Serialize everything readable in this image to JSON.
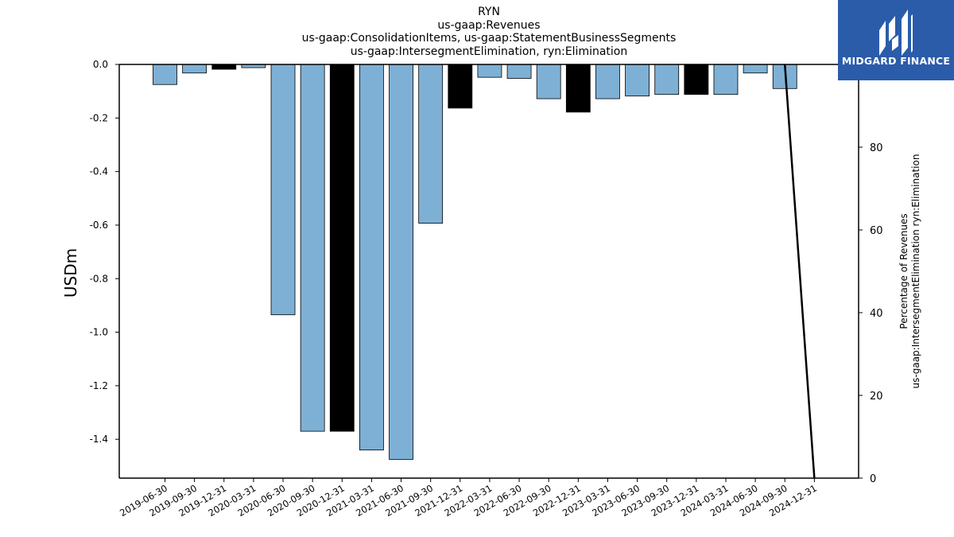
{
  "title_lines": [
    "RYN",
    "us-gaap:Revenues",
    "us-gaap:ConsolidationItems, us-gaap:StatementBusinessSegments",
    "us-gaap:IntersegmentElimination, ryn:Elimination"
  ],
  "logo": {
    "text": "MIDGARD FINANCE",
    "color": "#2a5caa"
  },
  "chart_data": {
    "type": "bar",
    "ylabel": "USDm",
    "y2label_lines": [
      "Percentage of Revenues",
      "us-gaap:IntersegmentElimination ryn:Elimination"
    ],
    "ylim": [
      -1.545,
      0.0
    ],
    "y2lim": [
      0,
      100
    ],
    "yticks": [
      0.0,
      -0.2,
      -0.4,
      -0.6,
      -0.8,
      -1.0,
      -1.2,
      -1.4
    ],
    "y2ticks": [
      0,
      20,
      40,
      60,
      80
    ],
    "categories": [
      "2019-06-30",
      "2019-09-30",
      "2019-12-31",
      "2020-03-31",
      "2020-06-30",
      "2020-09-30",
      "2020-12-31",
      "2021-03-31",
      "2021-06-30",
      "2021-09-30",
      "2021-12-31",
      "2022-03-31",
      "2022-06-30",
      "2022-09-30",
      "2022-12-31",
      "2023-03-31",
      "2023-06-30",
      "2023-09-30",
      "2023-12-31",
      "2024-03-31",
      "2024-06-30",
      "2024-09-30",
      "2024-12-31"
    ],
    "values": [
      -0.075,
      -0.032,
      -0.018,
      -0.012,
      -0.935,
      -1.37,
      -1.37,
      -1.44,
      -1.475,
      -0.593,
      -0.163,
      -0.048,
      -0.052,
      -0.128,
      -0.178,
      -0.128,
      -0.118,
      -0.112,
      -0.112,
      -0.112,
      -0.032,
      -0.09,
      null
    ],
    "bar_types": [
      "quarter",
      "quarter",
      "annual",
      "quarter",
      "quarter",
      "quarter",
      "annual",
      "quarter",
      "quarter",
      "quarter",
      "annual",
      "quarter",
      "quarter",
      "quarter",
      "annual",
      "quarter",
      "quarter",
      "quarter",
      "annual",
      "quarter",
      "quarter",
      "quarter",
      "quarter"
    ],
    "colors": {
      "quarter": "#7eb0d5",
      "annual": "#000000"
    },
    "line_series": {
      "x": [
        "2024-09-30",
        "2024-12-31"
      ],
      "values": [
        100,
        0
      ]
    }
  }
}
